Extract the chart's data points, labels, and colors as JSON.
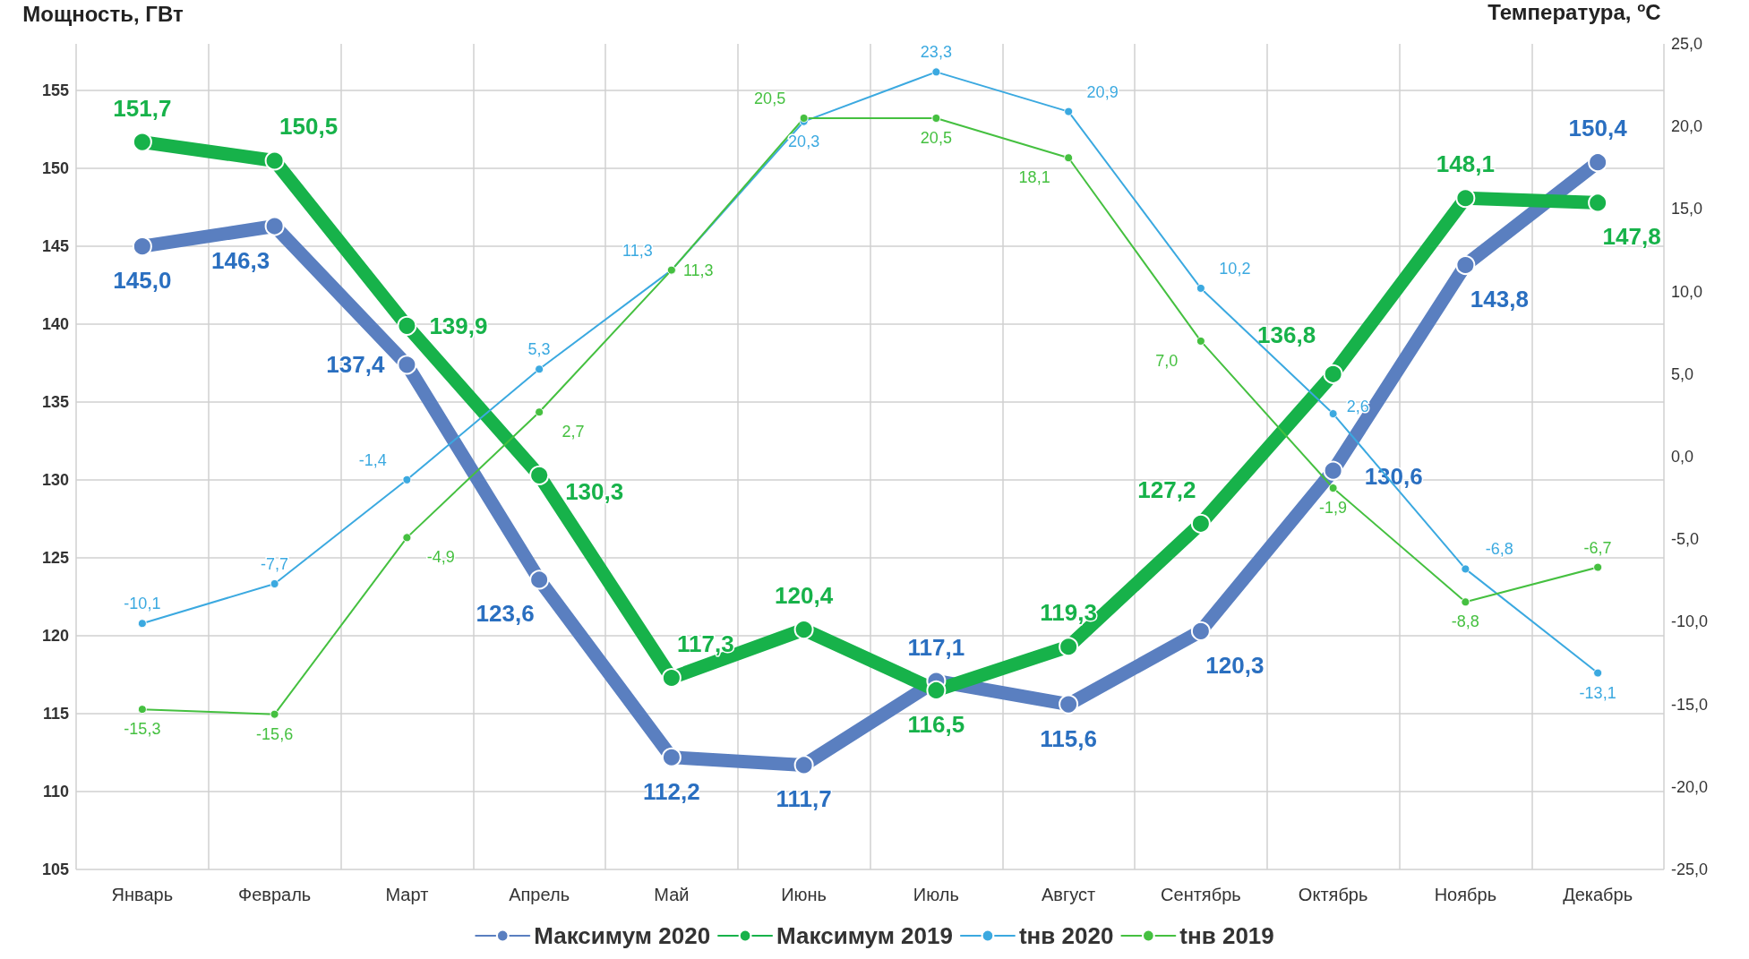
{
  "chart_data": {
    "type": "line",
    "ylabel": "Мощность, ГВт",
    "y2label": "Температура, $^{o}$С",
    "categories": [
      "Январь",
      "Февраль",
      "Март",
      "Апрель",
      "Май",
      "Июнь",
      "Июль",
      "Август",
      "Сентябрь",
      "Октябрь",
      "Ноябрь",
      "Декабрь"
    ],
    "ylim": [
      105,
      158
    ],
    "yticks": [
      105,
      110,
      115,
      120,
      125,
      130,
      135,
      140,
      145,
      150,
      155
    ],
    "y2lim": [
      -25,
      25
    ],
    "y2ticks": [
      {
        "value": -25,
        "label": "-25,0"
      },
      {
        "value": -20,
        "label": "-20,0"
      },
      {
        "value": -15,
        "label": "-15,0"
      },
      {
        "value": -10,
        "label": "-10,0"
      },
      {
        "value": -5,
        "label": "-5,0"
      },
      {
        "value": 0,
        "label": "0,0"
      },
      {
        "value": 5,
        "label": "5,0"
      },
      {
        "value": 10,
        "label": "10,0"
      },
      {
        "value": 15,
        "label": "15,0"
      },
      {
        "value": 20,
        "label": "20,0"
      },
      {
        "value": 25,
        "label": "25,0"
      }
    ],
    "grid": true,
    "legend": "bottom",
    "marker": "circle",
    "line_style": "solid",
    "series": [
      {
        "name": "Максимум 2020",
        "color": "#5a7fc0",
        "values": [
          145.0,
          146.3,
          137.4,
          123.6,
          112.2,
          111.7,
          117.1,
          115.6,
          120.3,
          130.6,
          143.8,
          150.4
        ],
        "value_labels": [
          "145,0",
          "146,3",
          "137,4",
          "123,6",
          "112,2",
          "111,7",
          "117,1",
          "115,6",
          "120,3",
          "130,6",
          "143,8",
          "150,4"
        ]
      },
      {
        "name": "Максимум 2019",
        "color": "#17b24a",
        "values": [
          151.7,
          150.5,
          139.9,
          130.3,
          117.3,
          120.4,
          116.5,
          119.3,
          127.2,
          136.8,
          148.1,
          147.8
        ],
        "value_labels": [
          "151,7",
          "150,5",
          "139,9",
          "130,3",
          "117,3",
          "120,4",
          "116,5",
          "119,3",
          "127,2",
          "136,8",
          "148,1",
          "147,8"
        ]
      },
      {
        "name": "tнв 2020",
        "color": "#3ba9e0",
        "axis": "y2",
        "values": [
          -10.1,
          -7.7,
          -1.4,
          5.3,
          11.3,
          20.3,
          23.3,
          20.9,
          10.2,
          2.6,
          -6.8,
          -13.1
        ],
        "value_labels": [
          "-10,1",
          "-7,7",
          "-1,4",
          "5,3",
          "11,3",
          "20,3",
          "23,3",
          "20,9",
          "10,2",
          "2,6",
          "-6,8",
          "-13,1"
        ]
      },
      {
        "name": "tнв 2019",
        "color": "#45c040",
        "axis": "y2",
        "values": [
          -15.3,
          -15.6,
          -4.9,
          2.7,
          11.3,
          20.5,
          20.5,
          18.1,
          7.0,
          -1.9,
          -8.8,
          -6.7
        ],
        "value_labels": [
          "-15,3",
          "-15,6",
          "-4,9",
          "2,7",
          "11,3",
          "20,5",
          "20,5",
          "18,1",
          "7,0",
          "-1,9",
          "-8,8",
          "-6,7"
        ]
      }
    ]
  }
}
